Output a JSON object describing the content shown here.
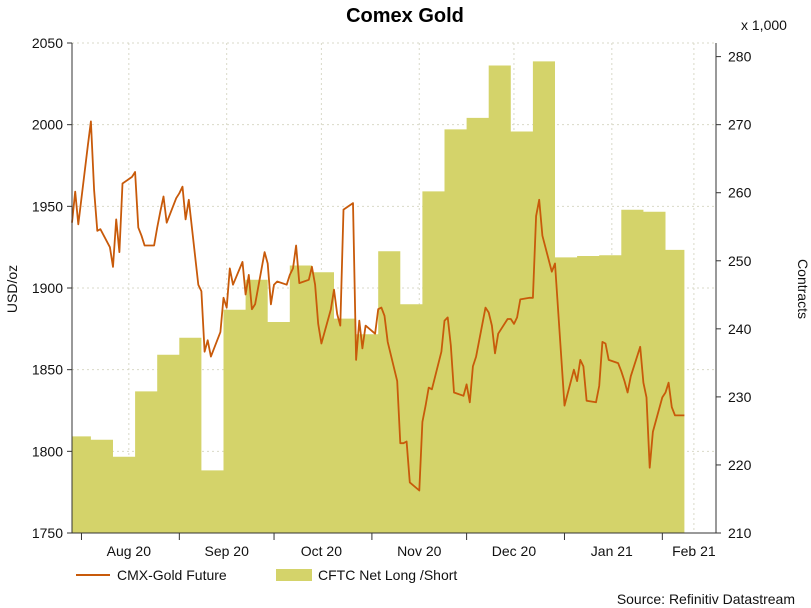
{
  "chart_data": {
    "type": "line",
    "title": "Comex Gold",
    "source": "Source: Refinitiv Datastream",
    "left_axis": {
      "label": "USD/oz",
      "ylim": [
        1750,
        2050
      ],
      "ticks": [
        1750,
        1800,
        1850,
        1900,
        1950,
        2000,
        2050
      ]
    },
    "right_axis": {
      "label": "Contracts",
      "multiplier_label": "x 1,000",
      "ylim": [
        210,
        282
      ],
      "ticks": [
        210,
        220,
        230,
        240,
        250,
        260,
        270,
        280
      ]
    },
    "x_axis": {
      "range": [
        "2020-07-29",
        "2021-02-18"
      ],
      "month_labels": [
        {
          "label": "Aug 20",
          "date": "2020-08-16"
        },
        {
          "label": "Sep 20",
          "date": "2020-09-16"
        },
        {
          "label": "Oct 20",
          "date": "2020-10-16"
        },
        {
          "label": "Nov 20",
          "date": "2020-11-16"
        },
        {
          "label": "Dec 20",
          "date": "2020-12-16"
        },
        {
          "label": "Jan 21",
          "date": "2021-01-16"
        },
        {
          "label": "Feb 21",
          "date": "2021-02-11"
        }
      ],
      "separators": [
        "2020-08-01",
        "2020-09-01",
        "2020-10-01",
        "2020-11-01",
        "2020-12-01",
        "2021-01-01",
        "2021-02-01"
      ]
    },
    "grid": true,
    "legend_position": "bottom-left",
    "series": [
      {
        "name": "CMX-Gold Future",
        "type": "line",
        "axis": "left",
        "color": "#c85a0a",
        "points": [
          [
            "2020-07-29",
            1940
          ],
          [
            "2020-07-30",
            1959
          ],
          [
            "2020-07-31",
            1939
          ],
          [
            "2020-08-03",
            1987
          ],
          [
            "2020-08-04",
            2002
          ],
          [
            "2020-08-05",
            1960
          ],
          [
            "2020-08-06",
            1935
          ],
          [
            "2020-08-07",
            1936
          ],
          [
            "2020-08-10",
            1925
          ],
          [
            "2020-08-11",
            1913
          ],
          [
            "2020-08-12",
            1942
          ],
          [
            "2020-08-13",
            1922
          ],
          [
            "2020-08-14",
            1964
          ],
          [
            "2020-08-17",
            1968
          ],
          [
            "2020-08-18",
            1971
          ],
          [
            "2020-08-19",
            1937
          ],
          [
            "2020-08-20",
            1932
          ],
          [
            "2020-08-21",
            1926
          ],
          [
            "2020-08-24",
            1926
          ],
          [
            "2020-08-25",
            1937
          ],
          [
            "2020-08-26",
            1947
          ],
          [
            "2020-08-27",
            1956
          ],
          [
            "2020-08-28",
            1940
          ],
          [
            "2020-08-31",
            1955
          ],
          [
            "2020-09-01",
            1958
          ],
          [
            "2020-09-02",
            1962
          ],
          [
            "2020-09-03",
            1942
          ],
          [
            "2020-09-04",
            1954
          ],
          [
            "2020-09-07",
            1902
          ],
          [
            "2020-09-08",
            1898
          ],
          [
            "2020-09-09",
            1861
          ],
          [
            "2020-09-10",
            1868
          ],
          [
            "2020-09-11",
            1858
          ],
          [
            "2020-09-14",
            1873
          ],
          [
            "2020-09-15",
            1894
          ],
          [
            "2020-09-16",
            1888
          ],
          [
            "2020-09-17",
            1912
          ],
          [
            "2020-09-18",
            1902
          ],
          [
            "2020-09-21",
            1916
          ],
          [
            "2020-09-22",
            1896
          ],
          [
            "2020-09-23",
            1908
          ],
          [
            "2020-09-24",
            1887
          ],
          [
            "2020-09-25",
            1890
          ],
          [
            "2020-09-28",
            1922
          ],
          [
            "2020-09-29",
            1915
          ],
          [
            "2020-09-30",
            1890
          ],
          [
            "2020-10-01",
            1902
          ],
          [
            "2020-10-02",
            1904
          ],
          [
            "2020-10-05",
            1902
          ],
          [
            "2020-10-06",
            1908
          ],
          [
            "2020-10-07",
            1912
          ],
          [
            "2020-10-08",
            1926
          ],
          [
            "2020-10-09",
            1903
          ],
          [
            "2020-10-12",
            1905
          ],
          [
            "2020-10-13",
            1913
          ],
          [
            "2020-10-14",
            1902
          ],
          [
            "2020-10-15",
            1878
          ],
          [
            "2020-10-16",
            1866
          ],
          [
            "2020-10-19",
            1887
          ],
          [
            "2020-10-20",
            1899
          ],
          [
            "2020-10-21",
            1884
          ],
          [
            "2020-10-22",
            1877
          ],
          [
            "2020-10-23",
            1948
          ],
          [
            "2020-10-26",
            1952
          ],
          [
            "2020-10-27",
            1856
          ],
          [
            "2020-10-28",
            1880
          ],
          [
            "2020-10-29",
            1863
          ],
          [
            "2020-10-30",
            1877
          ],
          [
            "2020-11-02",
            1872
          ],
          [
            "2020-11-03",
            1887
          ],
          [
            "2020-11-04",
            1888
          ],
          [
            "2020-11-05",
            1883
          ],
          [
            "2020-11-06",
            1867
          ],
          [
            "2020-11-09",
            1843
          ],
          [
            "2020-11-10",
            1805
          ],
          [
            "2020-11-11",
            1805
          ],
          [
            "2020-11-12",
            1806
          ],
          [
            "2020-11-13",
            1781
          ],
          [
            "2020-11-16",
            1776
          ],
          [
            "2020-11-17",
            1818
          ],
          [
            "2020-11-18",
            1828
          ],
          [
            "2020-11-19",
            1839
          ],
          [
            "2020-11-20",
            1838
          ],
          [
            "2020-11-23",
            1861
          ],
          [
            "2020-11-24",
            1880
          ],
          [
            "2020-11-25",
            1882
          ],
          [
            "2020-11-26",
            1865
          ],
          [
            "2020-11-27",
            1836
          ],
          [
            "2020-11-30",
            1834
          ],
          [
            "2020-12-01",
            1841
          ],
          [
            "2020-12-02",
            1830
          ],
          [
            "2020-12-03",
            1852
          ],
          [
            "2020-12-04",
            1858
          ],
          [
            "2020-12-07",
            1888
          ],
          [
            "2020-12-08",
            1885
          ],
          [
            "2020-12-09",
            1877
          ],
          [
            "2020-12-10",
            1860
          ],
          [
            "2020-12-11",
            1872
          ],
          [
            "2020-12-14",
            1881
          ],
          [
            "2020-12-15",
            1881
          ],
          [
            "2020-12-16",
            1878
          ],
          [
            "2020-12-17",
            1882
          ],
          [
            "2020-12-18",
            1893
          ],
          [
            "2020-12-21",
            1894
          ],
          [
            "2020-12-22",
            1894
          ],
          [
            "2020-12-23",
            1944
          ],
          [
            "2020-12-24",
            1954
          ],
          [
            "2020-12-25",
            1932
          ],
          [
            "2020-12-28",
            1910
          ],
          [
            "2020-12-29",
            1915
          ],
          [
            "2021-01-01",
            1828
          ],
          [
            "2021-01-04",
            1850
          ],
          [
            "2021-01-05",
            1843
          ],
          [
            "2021-01-06",
            1856
          ],
          [
            "2021-01-07",
            1852
          ],
          [
            "2021-01-08",
            1831
          ],
          [
            "2021-01-11",
            1830
          ],
          [
            "2021-01-12",
            1840
          ],
          [
            "2021-01-13",
            1867
          ],
          [
            "2021-01-14",
            1866
          ],
          [
            "2021-01-15",
            1856
          ],
          [
            "2021-01-18",
            1854
          ],
          [
            "2021-01-19",
            1849
          ],
          [
            "2021-01-20",
            1843
          ],
          [
            "2021-01-21",
            1836
          ],
          [
            "2021-01-22",
            1846
          ],
          [
            "2021-01-25",
            1864
          ],
          [
            "2021-01-26",
            1842
          ],
          [
            "2021-01-27",
            1833
          ],
          [
            "2021-01-28",
            1790
          ],
          [
            "2021-01-29",
            1812
          ],
          [
            "2021-02-01",
            1833
          ],
          [
            "2021-02-02",
            1836
          ],
          [
            "2021-02-03",
            1842
          ],
          [
            "2021-02-04",
            1827
          ],
          [
            "2021-02-05",
            1822
          ],
          [
            "2021-02-08",
            1822
          ]
        ]
      },
      {
        "name": "CFTC Net Long /Short",
        "type": "step-area",
        "axis": "right",
        "color": "#d4d36a",
        "steps": [
          [
            "2020-07-29",
            224.2
          ],
          [
            "2020-08-04",
            223.7
          ],
          [
            "2020-08-11",
            221.2
          ],
          [
            "2020-08-18",
            230.8
          ],
          [
            "2020-08-25",
            236.2
          ],
          [
            "2020-09-01",
            238.7
          ],
          [
            "2020-09-08",
            219.2
          ],
          [
            "2020-09-15",
            242.8
          ],
          [
            "2020-09-22",
            247.2
          ],
          [
            "2020-09-29",
            241.0
          ],
          [
            "2020-10-06",
            249.3
          ],
          [
            "2020-10-13",
            248.3
          ],
          [
            "2020-10-20",
            241.5
          ],
          [
            "2020-10-27",
            239.2
          ],
          [
            "2020-11-03",
            251.4
          ],
          [
            "2020-11-10",
            243.6
          ],
          [
            "2020-11-17",
            260.2
          ],
          [
            "2020-11-24",
            269.3
          ],
          [
            "2020-12-01",
            271.0
          ],
          [
            "2020-12-08",
            278.7
          ],
          [
            "2020-12-15",
            269.0
          ],
          [
            "2020-12-22",
            279.3
          ],
          [
            "2020-12-29",
            250.5
          ],
          [
            "2021-01-05",
            250.7
          ],
          [
            "2021-01-12",
            250.8
          ],
          [
            "2021-01-19",
            257.5
          ],
          [
            "2021-01-26",
            257.2
          ],
          [
            "2021-02-02",
            251.6
          ]
        ],
        "end": "2021-02-08"
      }
    ]
  }
}
